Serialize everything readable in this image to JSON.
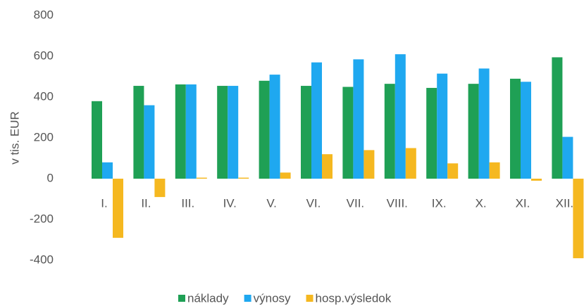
{
  "chart_data": {
    "type": "bar",
    "y_label": "v tis. EUR",
    "categories": [
      "I.",
      "II.",
      "III.",
      "IV.",
      "V.",
      "VI.",
      "VII.",
      "VIII.",
      "IX.",
      "X.",
      "XI.",
      "XII."
    ],
    "series": [
      {
        "name": "náklady",
        "color": "#1fa055",
        "values": [
          380,
          455,
          462,
          455,
          480,
          455,
          450,
          465,
          445,
          465,
          490,
          595
        ]
      },
      {
        "name": "výnosy",
        "color": "#1fa8f0",
        "values": [
          80,
          360,
          462,
          455,
          510,
          570,
          585,
          610,
          515,
          540,
          475,
          205
        ]
      },
      {
        "name": "hosp.výsledok",
        "color": "#f5b820",
        "values": [
          -290,
          -90,
          5,
          5,
          30,
          120,
          140,
          150,
          75,
          80,
          -10,
          -390
        ]
      }
    ],
    "ylim": [
      -400,
      800
    ],
    "yticks": [
      -400,
      -200,
      0,
      200,
      400,
      600,
      800
    ],
    "grid": false,
    "legend": "bottom"
  }
}
